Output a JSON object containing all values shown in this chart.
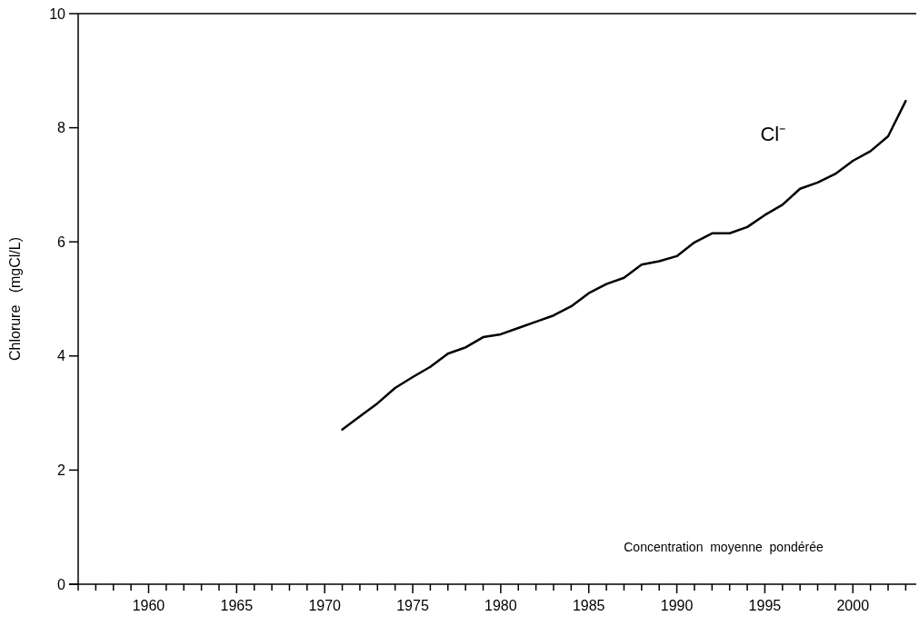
{
  "chart_data": {
    "type": "line",
    "ylabel": "Chlorure   (mgCl/L)",
    "annotations": [
      "Concentration  moyenne  pondérée"
    ],
    "x": [
      1971,
      1972,
      1973,
      1974,
      1975,
      1976,
      1977,
      1978,
      1979,
      1980,
      1981,
      1982,
      1983,
      1984,
      1985,
      1986,
      1987,
      1988,
      1989,
      1990,
      1991,
      1992,
      1993,
      1994,
      1995,
      1996,
      1997,
      1998,
      1999,
      2000,
      2001,
      2002,
      2003
    ],
    "series": [
      {
        "name": "Cl⁻",
        "color": "#000000",
        "values": [
          2.71,
          2.94,
          3.17,
          3.44,
          3.63,
          3.81,
          4.04,
          4.15,
          4.33,
          4.38,
          4.49,
          4.6,
          4.71,
          4.87,
          5.1,
          5.26,
          5.37,
          5.6,
          5.66,
          5.75,
          5.99,
          6.15,
          6.15,
          6.26,
          6.47,
          6.65,
          6.93,
          7.04,
          7.19,
          7.42,
          7.59,
          7.85,
          8.47
        ]
      }
    ],
    "xlim": [
      1956,
      2003.6
    ],
    "xticks": [
      {
        "value": 1956,
        "label": null
      },
      {
        "value": 1957,
        "label": null
      },
      {
        "value": 1958,
        "label": null
      },
      {
        "value": 1959,
        "label": null
      },
      1960,
      {
        "value": 1961,
        "label": null
      },
      {
        "value": 1962,
        "label": null
      },
      {
        "value": 1963,
        "label": null
      },
      {
        "value": 1964,
        "label": null
      },
      1965,
      {
        "value": 1966,
        "label": null
      },
      {
        "value": 1967,
        "label": null
      },
      {
        "value": 1968,
        "label": null
      },
      {
        "value": 1969,
        "label": null
      },
      1970,
      {
        "value": 1971,
        "label": null
      },
      {
        "value": 1972,
        "label": null
      },
      {
        "value": 1973,
        "label": null
      },
      {
        "value": 1974,
        "label": null
      },
      1975,
      {
        "value": 1976,
        "label": null
      },
      {
        "value": 1977,
        "label": null
      },
      {
        "value": 1978,
        "label": null
      },
      {
        "value": 1979,
        "label": null
      },
      1980,
      {
        "value": 1981,
        "label": null
      },
      {
        "value": 1982,
        "label": null
      },
      {
        "value": 1983,
        "label": null
      },
      {
        "value": 1984,
        "label": null
      },
      1985,
      {
        "value": 1986,
        "label": null
      },
      {
        "value": 1987,
        "label": null
      },
      {
        "value": 1988,
        "label": null
      },
      {
        "value": 1989,
        "label": null
      },
      1990,
      {
        "value": 1991,
        "label": null
      },
      {
        "value": 1992,
        "label": null
      },
      {
        "value": 1993,
        "label": null
      },
      {
        "value": 1994,
        "label": null
      },
      1995,
      {
        "value": 1996,
        "label": null
      },
      {
        "value": 1997,
        "label": null
      },
      {
        "value": 1998,
        "label": null
      },
      {
        "value": 1999,
        "label": null
      },
      2000,
      {
        "value": 2001,
        "label": null
      },
      {
        "value": 2002,
        "label": null
      },
      {
        "value": 2003,
        "label": null
      }
    ],
    "ylim": [
      0,
      10
    ],
    "yticks": [
      0,
      2,
      4,
      6,
      8,
      10
    ],
    "grid": false,
    "line_style": "solid",
    "marker": "none"
  }
}
